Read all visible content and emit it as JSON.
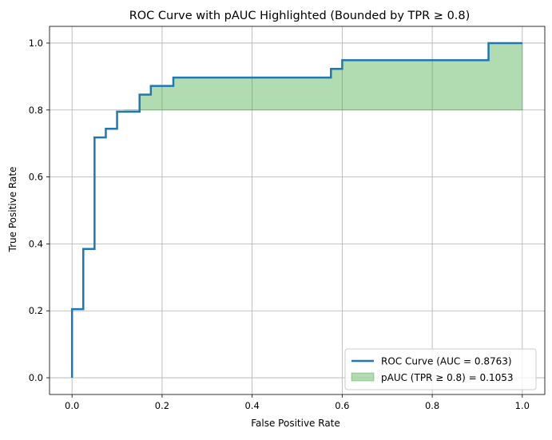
{
  "chart_data": {
    "type": "line",
    "title": "ROC Curve with pAUC Highlighted (Bounded by TPR ≥ 0.8)",
    "xlabel": "False Positive Rate",
    "ylabel": "True Positive Rate",
    "xlim": [
      -0.05,
      1.05
    ],
    "ylim": [
      -0.05,
      1.05
    ],
    "xticks": [
      0.0,
      0.2,
      0.4,
      0.6,
      0.8,
      1.0
    ],
    "xtick_labels": [
      "0.0",
      "0.2",
      "0.4",
      "0.6",
      "0.8",
      "1.0"
    ],
    "yticks": [
      0.0,
      0.2,
      0.4,
      0.6,
      0.8,
      1.0
    ],
    "ytick_labels": [
      "0.0",
      "0.2",
      "0.4",
      "0.6",
      "0.8",
      "1.0"
    ],
    "grid": true,
    "legend_position": "bottom-right",
    "series": [
      {
        "name": "ROC Curve (AUC = 0.8763)",
        "color": "#1f77b4",
        "drawstyle": "steps",
        "points": [
          [
            0.0,
            0.0
          ],
          [
            0.0,
            0.205
          ],
          [
            0.025,
            0.205
          ],
          [
            0.025,
            0.385
          ],
          [
            0.05,
            0.385
          ],
          [
            0.05,
            0.718
          ],
          [
            0.075,
            0.718
          ],
          [
            0.075,
            0.744
          ],
          [
            0.1,
            0.744
          ],
          [
            0.1,
            0.795
          ],
          [
            0.15,
            0.795
          ],
          [
            0.15,
            0.846
          ],
          [
            0.175,
            0.846
          ],
          [
            0.175,
            0.872
          ],
          [
            0.225,
            0.872
          ],
          [
            0.225,
            0.897
          ],
          [
            0.575,
            0.897
          ],
          [
            0.575,
            0.923
          ],
          [
            0.6,
            0.923
          ],
          [
            0.6,
            0.949
          ],
          [
            0.925,
            0.949
          ],
          [
            0.925,
            1.0
          ],
          [
            1.0,
            1.0
          ]
        ]
      }
    ],
    "filled_region": {
      "name": "pAUC (TPR ≥ 0.8) = 0.1053",
      "color": "#2ca02c",
      "alpha": 0.37,
      "baseline": 0.8,
      "x_start": 0.115
    }
  }
}
